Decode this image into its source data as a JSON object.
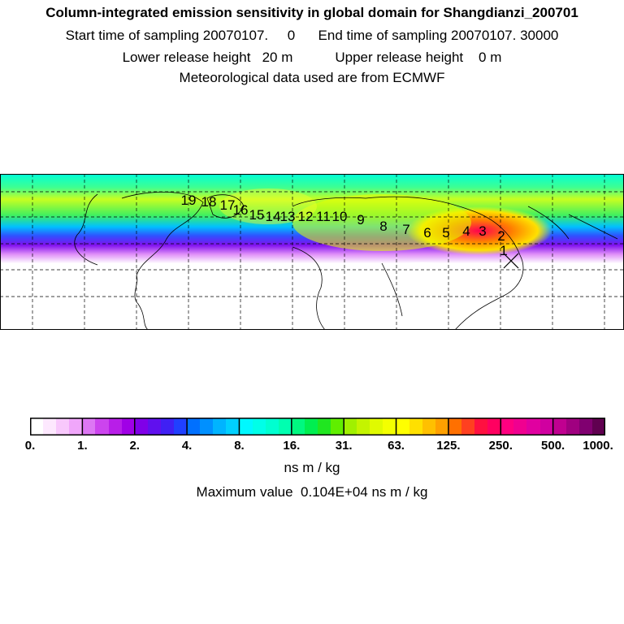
{
  "header": {
    "title": "Column-integrated emission sensitivity in global domain for Shangdianzi_200701",
    "sampling": "Start time of sampling 20070107.     0      End time of sampling 20070107. 30000",
    "release": "Lower release height   20 m           Upper release height    0 m",
    "met": "Meteorological data used are from ECMWF"
  },
  "map": {
    "receptor_marker": "x-marker",
    "trajectory_labels": [
      "1",
      "2",
      "3",
      "4",
      "5",
      "6",
      "7",
      "8",
      "9",
      "10",
      "11",
      "12",
      "13",
      "14",
      "15",
      "16",
      "17",
      "18",
      "19"
    ],
    "colors": {
      "band_north": "#00ffe0",
      "band_mid": "#c8ff00",
      "core": "#ff0040"
    }
  },
  "colorbar": {
    "tick_labels": [
      "0.",
      "1.",
      "2.",
      "4.",
      "8.",
      "16.",
      "31.",
      "63.",
      "125.",
      "250.",
      "500.",
      "1000."
    ],
    "colors": [
      "#ffffff",
      "#fde8fe",
      "#f8c8fc",
      "#f0a6fa",
      "#dd77f4",
      "#cc44ee",
      "#b81ee8",
      "#a000e6",
      "#8000e8",
      "#6010ee",
      "#4020f4",
      "#2040ff",
      "#0070ff",
      "#0090ff",
      "#00b4ff",
      "#00d0ff",
      "#00f8ff",
      "#00ffe8",
      "#00ffd0",
      "#00ffb0",
      "#00f880",
      "#00ee50",
      "#20e620",
      "#60ee00",
      "#a0f000",
      "#c4f400",
      "#e0fa00",
      "#f4ff00",
      "#ffff00",
      "#ffe000",
      "#ffc000",
      "#ffa000",
      "#ff7000",
      "#ff4020",
      "#ff1040",
      "#ff0060",
      "#ff0080",
      "#f00090",
      "#e000a0",
      "#d000a0",
      "#c00090",
      "#a00080",
      "#800070",
      "#600050"
    ]
  },
  "unit": "ns m / kg",
  "maximum": "Maximum value  0.104E+04 ns m / kg"
}
